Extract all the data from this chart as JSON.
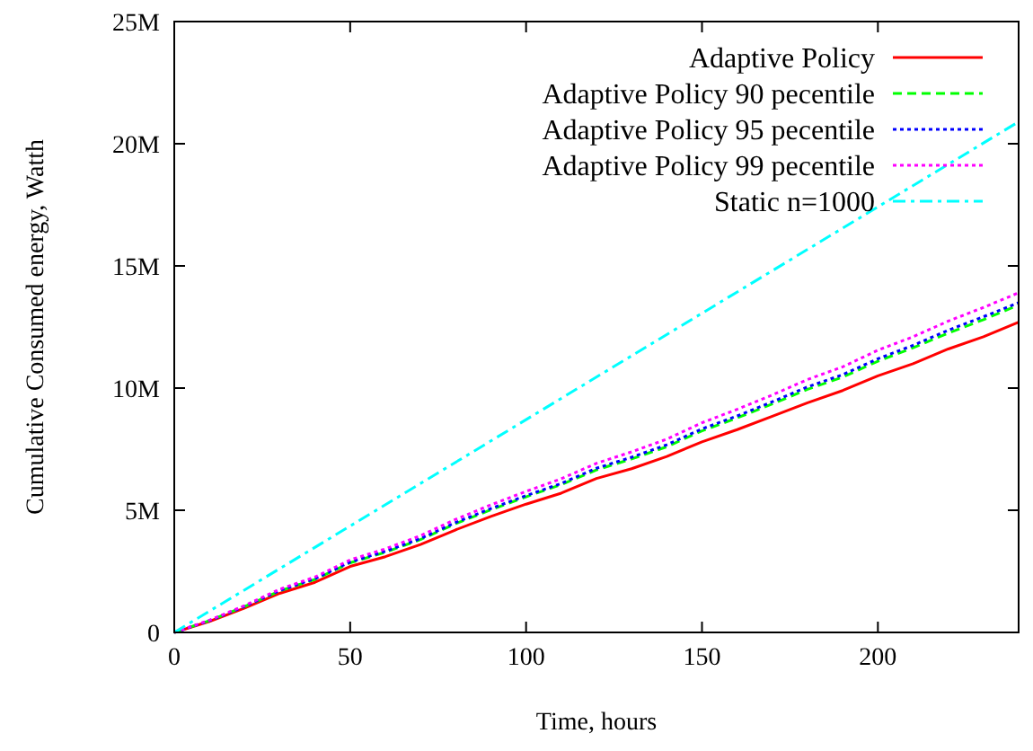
{
  "chart_data": {
    "type": "line",
    "xlabel": "Time, hours",
    "ylabel": "Cumulative Consumed energy, Watth",
    "x": [
      0,
      10,
      20,
      30,
      40,
      50,
      60,
      70,
      80,
      90,
      100,
      110,
      120,
      130,
      140,
      150,
      160,
      170,
      180,
      190,
      200,
      210,
      220,
      230,
      240
    ],
    "xlim": [
      0,
      240
    ],
    "xticks": [
      0,
      50,
      100,
      150,
      200
    ],
    "ylim": [
      0,
      25000000
    ],
    "yticks": [
      {
        "value": 0,
        "label": "0"
      },
      {
        "value": 5000000,
        "label": "5M"
      },
      {
        "value": 10000000,
        "label": "10M"
      },
      {
        "value": 15000000,
        "label": "15M"
      },
      {
        "value": 20000000,
        "label": "20M"
      },
      {
        "value": 25000000,
        "label": "25M"
      }
    ],
    "grid": false,
    "legend": "top right",
    "series": [
      {
        "name": "Adaptive Policy",
        "color": "#ff0000",
        "line_style": "solid",
        "values": [
          0,
          450000,
          1000000,
          1600000,
          2050000,
          2700000,
          3100000,
          3600000,
          4200000,
          4750000,
          5250000,
          5700000,
          6300000,
          6700000,
          7200000,
          7800000,
          8300000,
          8850000,
          9400000,
          9900000,
          10500000,
          11000000,
          11600000,
          12100000,
          12700000
        ]
      },
      {
        "name": "Adaptive Policy 90 pecentile",
        "color": "#00ff00",
        "line_style": "dashed",
        "values": [
          0,
          480000,
          1060000,
          1700000,
          2170000,
          2850000,
          3280000,
          3800000,
          4450000,
          5020000,
          5550000,
          6050000,
          6650000,
          7100000,
          7600000,
          8250000,
          8780000,
          9350000,
          9950000,
          10450000,
          11100000,
          11650000,
          12250000,
          12800000,
          13400000
        ]
      },
      {
        "name": "Adaptive Policy 95 pecentile",
        "color": "#0000ff",
        "line_style": "dotted",
        "values": [
          0,
          480000,
          1070000,
          1720000,
          2200000,
          2880000,
          3320000,
          3840000,
          4500000,
          5070000,
          5600000,
          6100000,
          6720000,
          7170000,
          7680000,
          8330000,
          8860000,
          9440000,
          10050000,
          10550000,
          11200000,
          11750000,
          12370000,
          12920000,
          13500000
        ]
      },
      {
        "name": "Adaptive Policy 99 pecentile",
        "color": "#ff00ff",
        "line_style": "dotted",
        "values": [
          0,
          500000,
          1100000,
          1770000,
          2270000,
          2970000,
          3420000,
          3960000,
          4630000,
          5220000,
          5770000,
          6290000,
          6920000,
          7390000,
          7910000,
          8580000,
          9130000,
          9720000,
          10350000,
          10870000,
          11550000,
          12100000,
          12740000,
          13300000,
          13900000
        ]
      },
      {
        "name": "Static n=1000",
        "color": "#00ffff",
        "line_style": "dashdot",
        "x": [
          0,
          240
        ],
        "values": [
          0,
          20900000
        ]
      }
    ]
  }
}
